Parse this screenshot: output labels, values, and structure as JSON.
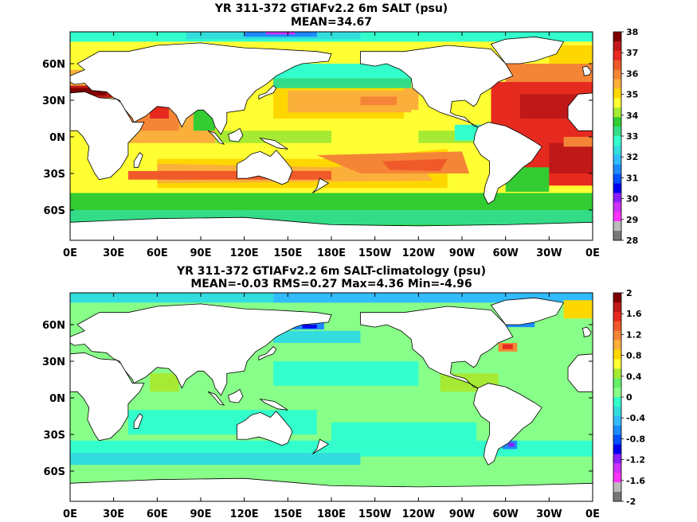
{
  "chart_data": [
    {
      "type": "heatmap",
      "title": "YR 311-372 GTIAFv2.2 6m SALT (psu)",
      "subtitle": "MEAN=34.67",
      "x_ticks": [
        "0E",
        "30E",
        "60E",
        "90E",
        "120E",
        "150E",
        "180E",
        "150W",
        "120W",
        "90W",
        "60W",
        "30W",
        "0E"
      ],
      "y_ticks": [
        "60N",
        "30N",
        "0N",
        "30S",
        "60S"
      ],
      "y_tick_values": [
        60,
        30,
        0,
        -30,
        -60
      ],
      "colorbar": {
        "labels": [
          "38",
          "37",
          "36",
          "35",
          "34",
          "33",
          "32",
          "31",
          "30",
          "29",
          "28"
        ],
        "colors": [
          "#7f0000",
          "#c01818",
          "#e62a1f",
          "#f0592a",
          "#f58536",
          "#fbb03b",
          "#ffd700",
          "#ffff33",
          "#a6ea33",
          "#33cc33",
          "#33dd88",
          "#33ffcc",
          "#33dddd",
          "#33bbff",
          "#1d8aff",
          "#0050ff",
          "#0000ee",
          "#8a1fff",
          "#cc33ff",
          "#ff33ff",
          "#bbbbbb",
          "#777777"
        ]
      }
    },
    {
      "type": "heatmap",
      "title": "YR 311-372 GTIAFv2.2 6m SALT-climatology (psu)",
      "subtitle": "MEAN=-0.03   RMS=0.27   Max=4.36   Min=-4.96",
      "x_ticks": [
        "0E",
        "30E",
        "60E",
        "90E",
        "120E",
        "150E",
        "180E",
        "150W",
        "120W",
        "90W",
        "60W",
        "30W",
        "0E"
      ],
      "y_ticks": [
        "60N",
        "30N",
        "0N",
        "30S",
        "60S"
      ],
      "y_tick_values": [
        60,
        30,
        0,
        -30,
        -60
      ],
      "colorbar": {
        "labels": [
          "2",
          "1.6",
          "1.2",
          "0.8",
          "0.4",
          "0",
          "-0.4",
          "-0.8",
          "-1.2",
          "-1.6",
          "-2"
        ],
        "colors": [
          "#7f0000",
          "#c01818",
          "#e62a1f",
          "#f0592a",
          "#f58536",
          "#fbb03b",
          "#ffd700",
          "#ffff33",
          "#a6ea33",
          "#66ee66",
          "#88ff88",
          "#33ffcc",
          "#33dddd",
          "#33bbff",
          "#1d8aff",
          "#0050ff",
          "#0000ee",
          "#8a1fff",
          "#cc33ff",
          "#ff33ff",
          "#bbbbbb",
          "#777777"
        ]
      }
    }
  ]
}
